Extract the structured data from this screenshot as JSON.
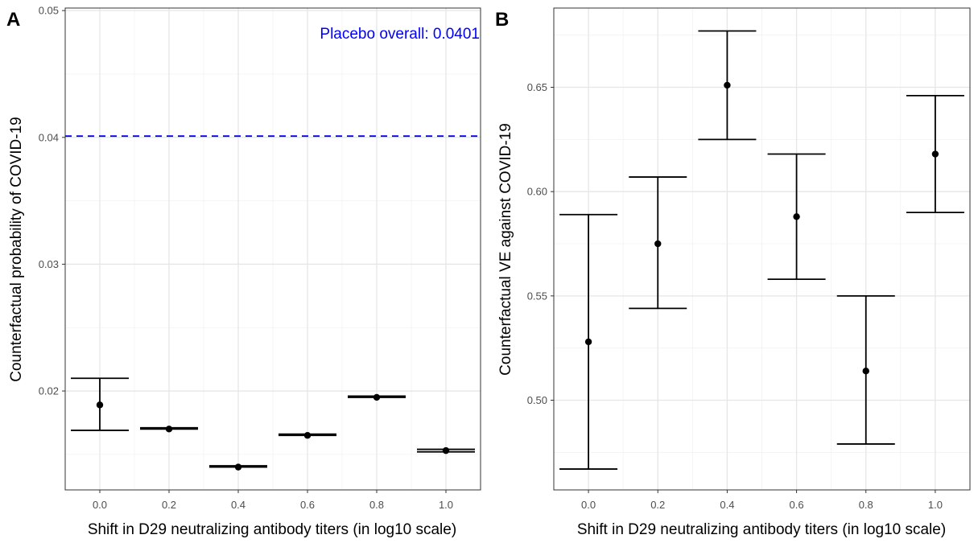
{
  "colors": {
    "ref_line": "#0000ff",
    "annotation": "#0000ff",
    "mark": "#000000",
    "grid_major": "#e6e6e6",
    "grid_minor": "#f2f2f2"
  },
  "chart_data": [
    {
      "type": "scatter",
      "panel_label": "A",
      "xlabel": "Shift in D29 neutralizing antibody titers (in log10 scale)",
      "ylabel": "Counterfactual probability of COVID-19",
      "xlim": [
        -0.1,
        1.1
      ],
      "ylim": [
        0.0122,
        0.0502
      ],
      "x_ticks": [
        0.0,
        0.2,
        0.4,
        0.6,
        0.8,
        1.0
      ],
      "x_tick_labels": [
        "0.0",
        "0.2",
        "0.4",
        "0.6",
        "0.8",
        "1.0"
      ],
      "y_ticks": [
        0.02,
        0.03,
        0.04,
        0.05
      ],
      "y_tick_labels": [
        "0.02",
        "0.03",
        "0.04",
        "0.05"
      ],
      "grid": true,
      "reference_line": {
        "value": 0.0401,
        "style": "dashed"
      },
      "annotation": "Placebo overall: 0.0401",
      "points": [
        {
          "x": 0.0,
          "estimate": 0.0189,
          "lower": 0.0169,
          "upper": 0.021
        },
        {
          "x": 0.2,
          "estimate": 0.017,
          "lower": 0.017,
          "upper": 0.0171
        },
        {
          "x": 0.4,
          "estimate": 0.014,
          "lower": 0.014,
          "upper": 0.0141
        },
        {
          "x": 0.6,
          "estimate": 0.0165,
          "lower": 0.0165,
          "upper": 0.0166
        },
        {
          "x": 0.8,
          "estimate": 0.0195,
          "lower": 0.0195,
          "upper": 0.0196
        },
        {
          "x": 1.0,
          "estimate": 0.0153,
          "lower": 0.0152,
          "upper": 0.0154
        }
      ]
    },
    {
      "type": "scatter",
      "panel_label": "B",
      "xlabel": "Shift in D29 neutralizing antibody titers (in log10 scale)",
      "ylabel": "Counterfactual VE against COVID-19",
      "xlim": [
        -0.1,
        1.1
      ],
      "ylim": [
        0.457,
        0.688
      ],
      "x_ticks": [
        0.0,
        0.2,
        0.4,
        0.6,
        0.8,
        1.0
      ],
      "x_tick_labels": [
        "0.0",
        "0.2",
        "0.4",
        "0.6",
        "0.8",
        "1.0"
      ],
      "y_ticks": [
        0.5,
        0.55,
        0.6,
        0.65
      ],
      "y_tick_labels": [
        "0.50",
        "0.55",
        "0.60",
        "0.65"
      ],
      "grid": true,
      "points": [
        {
          "x": 0.0,
          "estimate": 0.528,
          "lower": 0.467,
          "upper": 0.589
        },
        {
          "x": 0.2,
          "estimate": 0.575,
          "lower": 0.544,
          "upper": 0.607
        },
        {
          "x": 0.4,
          "estimate": 0.651,
          "lower": 0.625,
          "upper": 0.677
        },
        {
          "x": 0.6,
          "estimate": 0.588,
          "lower": 0.558,
          "upper": 0.618
        },
        {
          "x": 0.8,
          "estimate": 0.514,
          "lower": 0.479,
          "upper": 0.55
        },
        {
          "x": 1.0,
          "estimate": 0.618,
          "lower": 0.59,
          "upper": 0.646
        }
      ]
    }
  ]
}
